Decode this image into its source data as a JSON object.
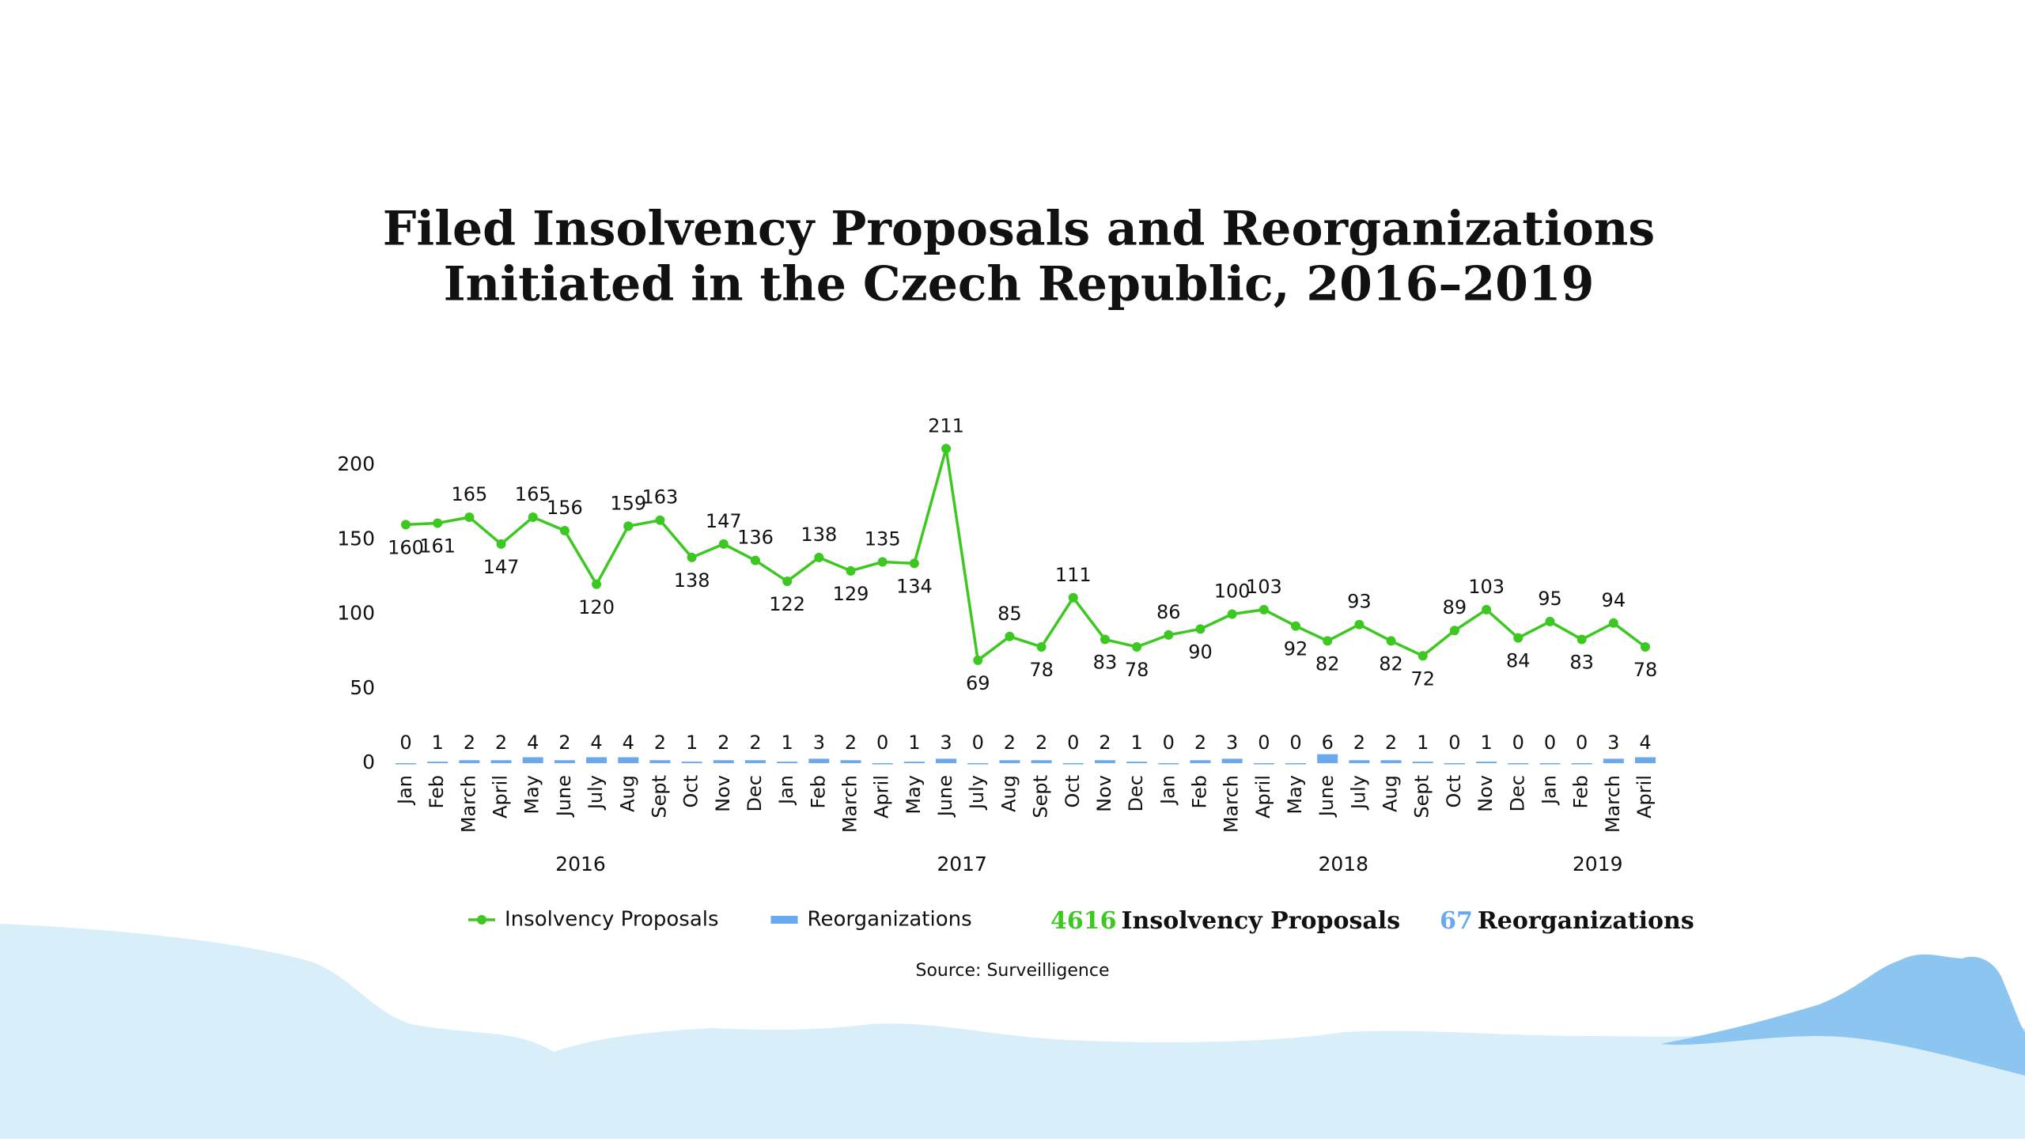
{
  "chart_data": {
    "type": "line-bar",
    "title": [
      "Filed Insolvency Proposals and Reorganizations",
      "Initiated in the Czech Republic, 2016–2019"
    ],
    "groups": [
      {
        "name": "2016",
        "categories": [
          "Jan",
          "Feb",
          "March",
          "April",
          "May",
          "June",
          "July",
          "Aug",
          "Sept",
          "Oct",
          "Nov",
          "Dec"
        ]
      },
      {
        "name": "2017",
        "categories": [
          "Jan",
          "Feb",
          "March",
          "April",
          "May",
          "June",
          "July",
          "Aug",
          "Sept",
          "Oct",
          "Nov",
          "Dec"
        ]
      },
      {
        "name": "2018",
        "categories": [
          "Jan",
          "Feb",
          "March",
          "April",
          "May",
          "June",
          "July",
          "Aug",
          "Sept",
          "Oct",
          "Nov",
          "Dec"
        ]
      },
      {
        "name": "2019",
        "categories": [
          "Jan",
          "Feb",
          "March",
          "April"
        ]
      }
    ],
    "series": [
      {
        "name": "Insolvency Proposals",
        "type": "line",
        "color": "#3cc820",
        "values": [
          160,
          161,
          165,
          147,
          165,
          156,
          120,
          159,
          163,
          138,
          147,
          136,
          122,
          138,
          129,
          135,
          134,
          211,
          69,
          85,
          78,
          111,
          83,
          78,
          86,
          90,
          100,
          103,
          92,
          82,
          93,
          82,
          72,
          89,
          103,
          84,
          95,
          83,
          94,
          78
        ]
      },
      {
        "name": "Reorganizations",
        "type": "bar",
        "color": "#6aa8f0",
        "values": [
          0,
          1,
          2,
          2,
          4,
          2,
          4,
          4,
          2,
          1,
          2,
          2,
          1,
          3,
          2,
          0,
          1,
          3,
          0,
          2,
          2,
          0,
          2,
          1,
          0,
          2,
          3,
          0,
          0,
          6,
          2,
          2,
          1,
          0,
          1,
          0,
          0,
          0,
          3,
          4
        ]
      }
    ],
    "ylim": [
      0,
      200
    ],
    "yticks": [
      0,
      50,
      100,
      150,
      200
    ],
    "grid": false,
    "totals": [
      {
        "value": 4616,
        "text": "Insolvency Proposals",
        "color": "#3cc820"
      },
      {
        "value": 67,
        "text": "Reorganizations",
        "color": "#6aa8f0"
      }
    ],
    "source": "Source: Surveilligence"
  }
}
